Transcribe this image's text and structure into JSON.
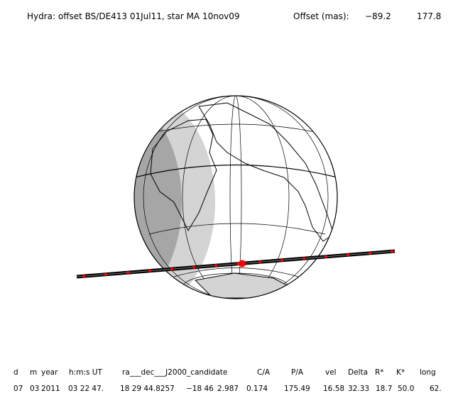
{
  "header": {
    "title": "Hydra: offset BS/DE413 01Jul11, star MA 10nov09",
    "offset_label": "Offset (mas):",
    "offset_values": [
      "−89.2",
      "177.8"
    ]
  },
  "table": {
    "columns": [
      "d",
      "m",
      "year",
      "h:m:s UT",
      "ra___dec___J2000_candidate",
      "C/A",
      "P/A",
      "vel",
      "Delta",
      "R*",
      "K*",
      "long"
    ],
    "row": [
      "07",
      "03",
      "2011",
      "03 22 47.",
      "18 29 44.8257",
      "−18 46",
      "2.987",
      "0.174",
      "175.49",
      "16.58",
      "32.33",
      "18.7",
      "50.0",
      "62."
    ]
  }
}
